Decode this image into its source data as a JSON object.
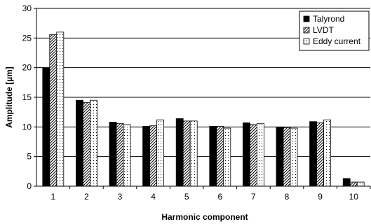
{
  "chart_data": {
    "type": "bar",
    "categories": [
      "1",
      "2",
      "3",
      "4",
      "5",
      "6",
      "7",
      "8",
      "9",
      "10"
    ],
    "series": [
      {
        "name": "Talyrond",
        "pattern": "solid",
        "color": "#000000",
        "values": [
          20.0,
          14.5,
          10.8,
          10.1,
          11.4,
          10.1,
          10.7,
          10.0,
          10.9,
          1.3
        ]
      },
      {
        "name": "LVDT",
        "pattern": "diagonal-hatch",
        "color": "#000000",
        "values": [
          25.6,
          14.1,
          10.6,
          10.2,
          11.0,
          10.1,
          10.4,
          9.9,
          10.7,
          0.7
        ]
      },
      {
        "name": "Eddy current",
        "pattern": "dots",
        "color": "#000000",
        "values": [
          26.0,
          14.5,
          10.4,
          11.2,
          11.0,
          9.8,
          10.6,
          9.8,
          11.2,
          0.7
        ]
      }
    ],
    "xlabel": "Harmonic component",
    "ylabel": "Amplitude [µm]",
    "ylim": [
      0,
      30
    ],
    "yticks": [
      "0",
      "5",
      "10",
      "15",
      "20",
      "25",
      "30"
    ],
    "grid": "horizontal",
    "legend_position": "top-right"
  }
}
